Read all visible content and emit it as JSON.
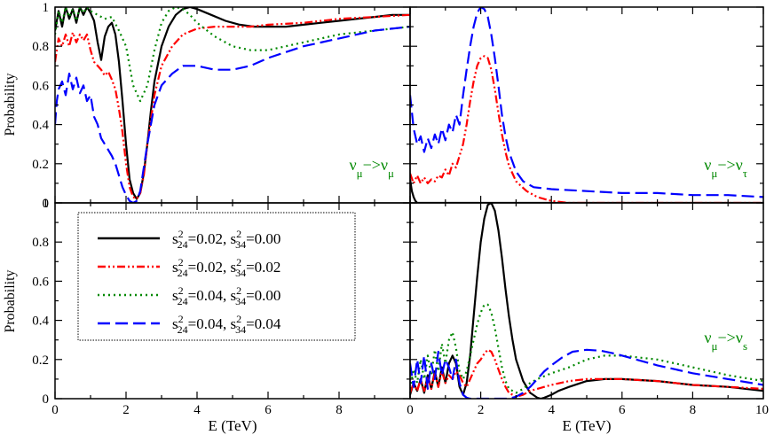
{
  "figure": {
    "y_axis_title": "Probability",
    "x_axis_title": "E (TeV)"
  },
  "legend": {
    "entries": [
      {
        "series": "s24_002_s34_000",
        "color": "#000000",
        "dash": "solid",
        "parts": [
          "s",
          "2",
          "24",
          "=0.02, s",
          "2",
          "34",
          "=0.00"
        ]
      },
      {
        "series": "s24_002_s34_002",
        "color": "#ff0000",
        "dash": "dashdotdot",
        "parts": [
          "s",
          "2",
          "24",
          "=0.02, s",
          "2",
          "34",
          "=0.02"
        ]
      },
      {
        "series": "s24_004_s34_000",
        "color": "#008800",
        "dash": "dotted",
        "parts": [
          "s",
          "2",
          "24",
          "=0.04, s",
          "2",
          "34",
          "=0.00"
        ]
      },
      {
        "series": "s24_004_s34_004",
        "color": "#0000ff",
        "dash": "dashed",
        "parts": [
          "s",
          "2",
          "24",
          "=0.04, s",
          "2",
          "34",
          "=0.04"
        ]
      }
    ]
  },
  "colors": {
    "s24_002_s34_000": "#000000",
    "s24_002_s34_002": "#ff0000",
    "s24_004_s34_000": "#008800",
    "s24_004_s34_004": "#0000ff",
    "annotation": "#008800"
  },
  "chart_data": [
    {
      "type": "line",
      "panel": "top-left",
      "annotation": {
        "base1": "ν",
        "sub1": "μ",
        "arrow": "−>",
        "base2": "ν",
        "sub2": "μ"
      },
      "ylabel": "Probability",
      "xlabel": "",
      "xlim": [
        0,
        10
      ],
      "ylim": [
        0,
        1
      ],
      "y_ticks": [
        0,
        0.2,
        0.4,
        0.6,
        0.8,
        1
      ],
      "y_tick_labels": [
        "0",
        "0.2",
        "0.4",
        "0.6",
        "0.8",
        "1"
      ],
      "series": [
        {
          "name": "s24_002_s34_000",
          "x": [
            0,
            0.1,
            0.2,
            0.3,
            0.4,
            0.5,
            0.6,
            0.7,
            0.8,
            0.9,
            1.0,
            1.1,
            1.2,
            1.3,
            1.4,
            1.5,
            1.6,
            1.7,
            1.8,
            1.9,
            2.0,
            2.1,
            2.2,
            2.3,
            2.4,
            2.5,
            2.6,
            2.7,
            2.8,
            3.0,
            3.2,
            3.4,
            3.6,
            3.8,
            4.0,
            4.4,
            4.8,
            5.2,
            5.6,
            6.0,
            6.5,
            7.0,
            7.5,
            8.0,
            8.5,
            9.0,
            9.5,
            10.0
          ],
          "y": [
            0.88,
            0.98,
            0.9,
            1.0,
            0.94,
            0.99,
            0.92,
            1.0,
            0.96,
            1.0,
            0.97,
            0.93,
            0.82,
            0.73,
            0.85,
            0.9,
            0.92,
            0.86,
            0.72,
            0.52,
            0.3,
            0.12,
            0.05,
            0.02,
            0.05,
            0.15,
            0.3,
            0.47,
            0.62,
            0.8,
            0.9,
            0.96,
            0.99,
            1.0,
            0.99,
            0.96,
            0.93,
            0.91,
            0.9,
            0.9,
            0.9,
            0.91,
            0.92,
            0.93,
            0.94,
            0.95,
            0.96,
            0.96
          ]
        },
        {
          "name": "s24_002_s34_002",
          "x": [
            0,
            0.1,
            0.2,
            0.3,
            0.4,
            0.5,
            0.6,
            0.7,
            0.8,
            0.9,
            1.0,
            1.1,
            1.2,
            1.3,
            1.4,
            1.5,
            1.6,
            1.7,
            1.8,
            1.9,
            2.0,
            2.1,
            2.2,
            2.3,
            2.4,
            2.5,
            2.6,
            2.8,
            3.0,
            3.3,
            3.6,
            4.0,
            4.5,
            5.0,
            5.5,
            6.0,
            7.0,
            8.0,
            9.0,
            10.0
          ],
          "y": [
            0.72,
            0.84,
            0.8,
            0.86,
            0.8,
            0.87,
            0.82,
            0.86,
            0.83,
            0.86,
            0.78,
            0.72,
            0.7,
            0.68,
            0.65,
            0.67,
            0.63,
            0.58,
            0.48,
            0.36,
            0.2,
            0.08,
            0.03,
            0.02,
            0.05,
            0.14,
            0.3,
            0.55,
            0.7,
            0.8,
            0.86,
            0.89,
            0.9,
            0.9,
            0.9,
            0.91,
            0.92,
            0.94,
            0.95,
            0.96
          ]
        },
        {
          "name": "s24_004_s34_000",
          "x": [
            0,
            0.1,
            0.2,
            0.3,
            0.4,
            0.5,
            0.6,
            0.7,
            0.8,
            0.9,
            1.0,
            1.2,
            1.4,
            1.6,
            1.8,
            2.0,
            2.2,
            2.4,
            2.6,
            2.8,
            3.0,
            3.2,
            3.4,
            3.6,
            3.8,
            4.0,
            4.5,
            5.0,
            5.5,
            6.0,
            7.0,
            8.0,
            9.0,
            10.0
          ],
          "y": [
            0.86,
            0.98,
            0.92,
            1.0,
            0.95,
            0.99,
            0.93,
            1.0,
            0.97,
            1.0,
            0.98,
            0.96,
            0.94,
            0.95,
            0.88,
            0.8,
            0.6,
            0.52,
            0.6,
            0.78,
            0.92,
            0.98,
            1.0,
            0.99,
            0.96,
            0.92,
            0.85,
            0.8,
            0.78,
            0.78,
            0.82,
            0.86,
            0.88,
            0.9
          ]
        },
        {
          "name": "s24_004_s34_004",
          "x": [
            0,
            0.05,
            0.1,
            0.2,
            0.3,
            0.4,
            0.5,
            0.6,
            0.7,
            0.8,
            0.9,
            1.0,
            1.1,
            1.2,
            1.3,
            1.4,
            1.5,
            1.6,
            1.7,
            1.8,
            1.9,
            2.0,
            2.1,
            2.2,
            2.3,
            2.4,
            2.5,
            2.6,
            2.7,
            2.8,
            3.0,
            3.3,
            3.6,
            4.0,
            4.5,
            5.0,
            5.5,
            6.0,
            7.0,
            8.0,
            9.0,
            10.0
          ],
          "y": [
            0.4,
            0.52,
            0.58,
            0.62,
            0.55,
            0.66,
            0.58,
            0.64,
            0.56,
            0.6,
            0.52,
            0.55,
            0.44,
            0.4,
            0.33,
            0.3,
            0.27,
            0.24,
            0.2,
            0.14,
            0.08,
            0.04,
            0.01,
            0.0,
            0.01,
            0.06,
            0.18,
            0.3,
            0.4,
            0.5,
            0.6,
            0.66,
            0.7,
            0.7,
            0.68,
            0.68,
            0.7,
            0.74,
            0.8,
            0.84,
            0.88,
            0.9
          ]
        }
      ]
    },
    {
      "type": "line",
      "panel": "top-right",
      "annotation": {
        "base1": "ν",
        "sub1": "μ",
        "arrow": "−>",
        "base2": "ν",
        "sub2": "τ"
      },
      "ylabel": "",
      "xlabel": "",
      "xlim": [
        0,
        10
      ],
      "ylim": [
        0,
        1
      ],
      "series": [
        {
          "name": "s24_002_s34_000",
          "x": [
            0,
            0.05,
            0.1,
            0.15,
            0.2,
            0.3,
            0.4,
            10.0
          ],
          "y": [
            0.12,
            0.06,
            0.03,
            0.01,
            0.0,
            0.0,
            0.0,
            0.0
          ]
        },
        {
          "name": "s24_002_s34_002",
          "x": [
            0,
            0.1,
            0.2,
            0.3,
            0.4,
            0.5,
            0.6,
            0.7,
            0.8,
            0.9,
            1.0,
            1.1,
            1.2,
            1.3,
            1.4,
            1.5,
            1.6,
            1.7,
            1.8,
            1.9,
            2.0,
            2.1,
            2.2,
            2.3,
            2.4,
            2.5,
            2.6,
            2.7,
            2.8,
            3.0,
            3.3,
            3.6,
            4.0,
            4.5,
            5.0,
            6.0,
            7.0,
            8.0,
            9.0,
            10.0
          ],
          "y": [
            0.15,
            0.1,
            0.14,
            0.1,
            0.13,
            0.1,
            0.12,
            0.11,
            0.14,
            0.13,
            0.17,
            0.14,
            0.2,
            0.18,
            0.24,
            0.3,
            0.4,
            0.52,
            0.62,
            0.7,
            0.74,
            0.75,
            0.74,
            0.68,
            0.58,
            0.46,
            0.35,
            0.26,
            0.19,
            0.11,
            0.06,
            0.03,
            0.01,
            0.0,
            0.0,
            0.0,
            0.0,
            0.0,
            0.0,
            0.0
          ]
        },
        {
          "name": "s24_004_s34_004",
          "x": [
            0,
            0.1,
            0.2,
            0.3,
            0.4,
            0.5,
            0.6,
            0.7,
            0.8,
            0.9,
            1.0,
            1.1,
            1.2,
            1.3,
            1.4,
            1.5,
            1.6,
            1.7,
            1.8,
            1.9,
            2.0,
            2.1,
            2.2,
            2.3,
            2.4,
            2.5,
            2.6,
            2.7,
            2.8,
            3.0,
            3.2,
            3.5,
            4.0,
            5.0,
            6.0,
            7.0,
            8.0,
            9.0,
            10.0
          ],
          "y": [
            0.55,
            0.38,
            0.3,
            0.34,
            0.26,
            0.33,
            0.28,
            0.35,
            0.3,
            0.38,
            0.32,
            0.4,
            0.36,
            0.45,
            0.4,
            0.55,
            0.68,
            0.8,
            0.9,
            0.97,
            1.0,
            0.99,
            0.95,
            0.86,
            0.74,
            0.6,
            0.45,
            0.34,
            0.26,
            0.16,
            0.11,
            0.08,
            0.07,
            0.06,
            0.05,
            0.05,
            0.04,
            0.04,
            0.03
          ]
        }
      ]
    },
    {
      "type": "line",
      "panel": "bottom-left",
      "annotation": null,
      "ylabel": "Probability",
      "xlabel": "E (TeV)",
      "xlim": [
        0,
        10
      ],
      "ylim": [
        0,
        1
      ],
      "y_ticks": [
        0,
        0.2,
        0.4,
        0.6,
        0.8,
        1
      ],
      "y_tick_labels": [
        "0",
        "0.2",
        "0.4",
        "0.6",
        "0.8",
        "1"
      ],
      "x_ticks": [
        0,
        2,
        4,
        6,
        8
      ],
      "x_tick_labels": [
        "0",
        "2",
        "4",
        "6",
        "8"
      ],
      "series": []
    },
    {
      "type": "line",
      "panel": "bottom-right",
      "annotation": {
        "base1": "ν",
        "sub1": "μ",
        "arrow": "−>",
        "base2": "ν",
        "sub2": "s"
      },
      "ylabel": "",
      "xlabel": "E (TeV)",
      "xlim": [
        0,
        10
      ],
      "ylim": [
        0,
        1
      ],
      "x_ticks": [
        0,
        2,
        4,
        6,
        8,
        10
      ],
      "x_tick_labels": [
        "0",
        "2",
        "4",
        "6",
        "8",
        "10"
      ],
      "series": [
        {
          "name": "s24_002_s34_000",
          "x": [
            0,
            0.1,
            0.2,
            0.3,
            0.4,
            0.5,
            0.6,
            0.7,
            0.8,
            0.9,
            1.0,
            1.1,
            1.2,
            1.3,
            1.4,
            1.5,
            1.6,
            1.7,
            1.8,
            1.9,
            2.0,
            2.1,
            2.2,
            2.3,
            2.4,
            2.5,
            2.6,
            2.7,
            2.8,
            2.9,
            3.0,
            3.2,
            3.4,
            3.6,
            3.7,
            3.8,
            4.0,
            4.2,
            4.5,
            5.0,
            5.5,
            6.0,
            7.0,
            8.0,
            9.0,
            10.0
          ],
          "y": [
            0.02,
            0.08,
            0.04,
            0.1,
            0.03,
            0.12,
            0.05,
            0.14,
            0.06,
            0.16,
            0.08,
            0.18,
            0.22,
            0.18,
            0.06,
            0.02,
            0.08,
            0.22,
            0.42,
            0.62,
            0.8,
            0.92,
            0.99,
            1.0,
            0.96,
            0.86,
            0.72,
            0.56,
            0.42,
            0.3,
            0.2,
            0.09,
            0.03,
            0.005,
            0.0,
            0.005,
            0.02,
            0.04,
            0.06,
            0.09,
            0.1,
            0.1,
            0.09,
            0.07,
            0.06,
            0.04
          ]
        },
        {
          "name": "s24_002_s34_002",
          "x": [
            0,
            0.1,
            0.2,
            0.3,
            0.4,
            0.5,
            0.6,
            0.7,
            0.8,
            0.9,
            1.0,
            1.1,
            1.2,
            1.3,
            1.4,
            1.5,
            1.6,
            1.7,
            1.8,
            1.9,
            2.0,
            2.1,
            2.2,
            2.3,
            2.4,
            2.5,
            2.6,
            2.7,
            2.8,
            3.0,
            3.2,
            3.4,
            3.6,
            3.8,
            4.0,
            4.5,
            5.0,
            5.5,
            6.0,
            7.0,
            8.0,
            9.0,
            10.0
          ],
          "y": [
            0.03,
            0.08,
            0.04,
            0.1,
            0.04,
            0.11,
            0.05,
            0.13,
            0.06,
            0.14,
            0.08,
            0.12,
            0.1,
            0.14,
            0.12,
            0.08,
            0.06,
            0.1,
            0.14,
            0.18,
            0.2,
            0.23,
            0.25,
            0.24,
            0.2,
            0.15,
            0.1,
            0.06,
            0.03,
            0.01,
            0.02,
            0.04,
            0.05,
            0.06,
            0.07,
            0.09,
            0.1,
            0.1,
            0.1,
            0.09,
            0.07,
            0.06,
            0.05
          ]
        },
        {
          "name": "s24_004_s34_000",
          "x": [
            0,
            0.1,
            0.2,
            0.3,
            0.4,
            0.5,
            0.6,
            0.7,
            0.8,
            0.9,
            1.0,
            1.1,
            1.2,
            1.3,
            1.4,
            1.5,
            1.6,
            1.7,
            1.8,
            1.9,
            2.0,
            2.1,
            2.2,
            2.3,
            2.4,
            2.5,
            2.6,
            2.7,
            2.8,
            3.0,
            3.2,
            3.4,
            3.6,
            4.0,
            4.5,
            5.0,
            5.5,
            6.0,
            7.0,
            8.0,
            9.0,
            10.0
          ],
          "y": [
            0.05,
            0.15,
            0.08,
            0.2,
            0.1,
            0.22,
            0.12,
            0.25,
            0.14,
            0.28,
            0.18,
            0.3,
            0.34,
            0.26,
            0.14,
            0.1,
            0.14,
            0.22,
            0.3,
            0.38,
            0.44,
            0.48,
            0.48,
            0.44,
            0.36,
            0.26,
            0.16,
            0.09,
            0.05,
            0.03,
            0.05,
            0.08,
            0.1,
            0.13,
            0.16,
            0.2,
            0.22,
            0.22,
            0.2,
            0.16,
            0.12,
            0.09
          ]
        },
        {
          "name": "s24_004_s34_004",
          "x": [
            0,
            0.1,
            0.2,
            0.3,
            0.4,
            0.5,
            0.6,
            0.7,
            0.8,
            0.9,
            1.0,
            1.1,
            1.2,
            1.3,
            1.4,
            1.5,
            1.6,
            1.7,
            1.8,
            1.9,
            2.0,
            2.2,
            2.4,
            2.6,
            2.8,
            3.0,
            3.2,
            3.4,
            3.6,
            3.8,
            4.0,
            4.3,
            4.6,
            5.0,
            5.4,
            5.8,
            6.2,
            7.0,
            8.0,
            9.0,
            10.0
          ],
          "y": [
            0.18,
            0.06,
            0.2,
            0.08,
            0.22,
            0.05,
            0.18,
            0.1,
            0.24,
            0.12,
            0.2,
            0.16,
            0.1,
            0.2,
            0.08,
            0.02,
            0.005,
            0.0,
            0.0,
            0.0,
            0.0,
            0.0,
            0.0,
            0.0,
            0.0,
            0.01,
            0.03,
            0.06,
            0.1,
            0.14,
            0.17,
            0.21,
            0.24,
            0.25,
            0.245,
            0.23,
            0.21,
            0.17,
            0.13,
            0.1,
            0.07
          ]
        }
      ]
    }
  ]
}
